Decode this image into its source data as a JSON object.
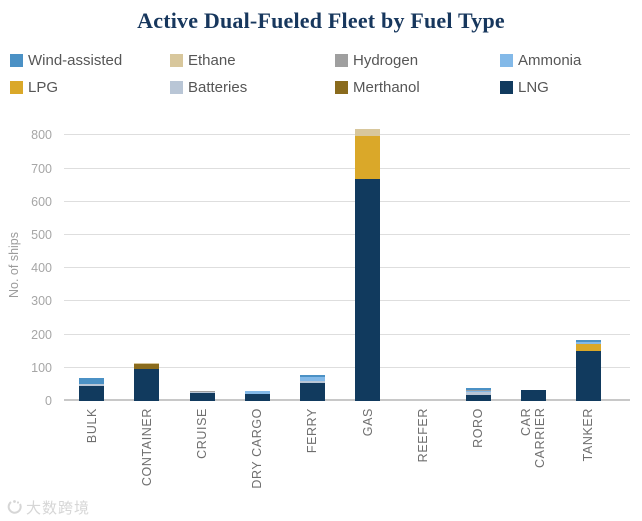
{
  "title": "Active Dual-Fueled Fleet by Fuel Type",
  "watermark": "大数跨境",
  "colors": {
    "Wind-assisted": "#4b91c5",
    "Ethane": "#d8c79c",
    "Hydrogen": "#9f9f9f",
    "Ammonia": "#83b9e8",
    "LPG": "#daa829",
    "Batteries": "#b9c6d6",
    "Merthanol": "#8a6b1d",
    "LNG": "#113a5e",
    "title_text": "#17375d",
    "gridline": "#dedede",
    "axis_line": "#c8c8c8"
  },
  "legend": {
    "items": [
      "Wind-assisted",
      "Ethane",
      "Hydrogen",
      "Ammonia",
      "LPG",
      "Batteries",
      "Merthanol",
      "LNG"
    ]
  },
  "chart_data": {
    "type": "bar",
    "stacked": true,
    "title": "Active Dual-Fueled Fleet by Fuel Type",
    "xlabel": "",
    "ylabel": "No. of ships",
    "ylim": [
      0,
      800
    ],
    "ytick_interval": 100,
    "grid": true,
    "legend_position": "top",
    "categories": [
      "BULK",
      "CONTAINER",
      "CRUISE",
      "DRY CARGO",
      "FERRY",
      "GAS",
      "REEFER",
      "RORO",
      "CAR CARRIER",
      "TANKER"
    ],
    "series": [
      {
        "name": "LNG",
        "values": [
          45,
          97,
          25,
          20,
          54,
          670,
          0,
          19,
          33,
          152
        ]
      },
      {
        "name": "Merthanol",
        "values": [
          0,
          15,
          0,
          0,
          0,
          0,
          0,
          0,
          0,
          0
        ]
      },
      {
        "name": "Batteries",
        "values": [
          6,
          0,
          3,
          0,
          5,
          0,
          0,
          7,
          0,
          0
        ]
      },
      {
        "name": "LPG",
        "values": [
          0,
          0,
          0,
          0,
          0,
          128,
          0,
          0,
          0,
          21
        ]
      },
      {
        "name": "Ammonia",
        "values": [
          0,
          0,
          0,
          10,
          12,
          0,
          0,
          4,
          0,
          6
        ]
      },
      {
        "name": "Hydrogen",
        "values": [
          0,
          0,
          2,
          0,
          2,
          0,
          0,
          2,
          0,
          0
        ]
      },
      {
        "name": "Ethane",
        "values": [
          0,
          3,
          0,
          0,
          0,
          22,
          0,
          0,
          0,
          0
        ]
      },
      {
        "name": "Wind-assisted",
        "values": [
          18,
          0,
          0,
          0,
          5,
          0,
          0,
          6,
          0,
          6
        ]
      }
    ],
    "totals": [
      69,
      115,
      30,
      30,
      78,
      820,
      0,
      38,
      33,
      185
    ]
  }
}
